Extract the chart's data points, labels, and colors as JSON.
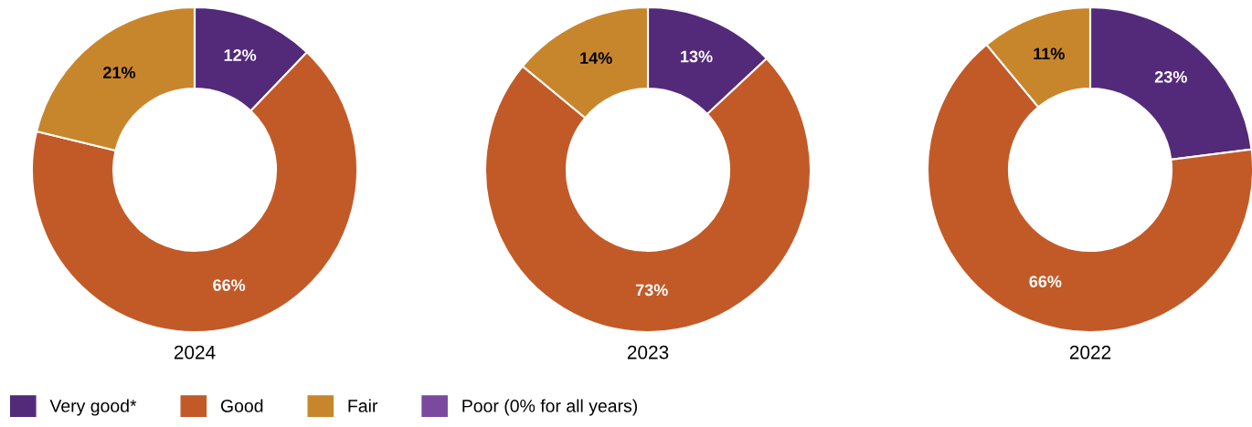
{
  "chart_data": [
    {
      "type": "donut",
      "title": "2024",
      "categories": [
        "Very good*",
        "Good",
        "Fair",
        "Poor (0% for all years)"
      ],
      "values": [
        12,
        66,
        21,
        0
      ],
      "colors": [
        "#532a7a",
        "#c25a28",
        "#c8862c",
        "#7b4a9e"
      ],
      "value_labels": [
        "12%",
        "66%",
        "21%",
        null
      ],
      "legend": "bottom"
    },
    {
      "type": "donut",
      "title": "2023",
      "categories": [
        null,
        null,
        null,
        null
      ],
      "values": [
        13,
        73,
        14,
        0
      ],
      "colors": [
        "#532a7a",
        "#c25a28",
        "#c8862c",
        "#7b4a9e"
      ],
      "value_labels": [
        "13%",
        "73%",
        "14%",
        null
      ]
    },
    {
      "type": "donut",
      "title": "2022",
      "categories": [
        null,
        null,
        null,
        null
      ],
      "values": [
        23,
        66,
        11,
        0
      ],
      "colors": [
        "#532a7a",
        "#c25a28",
        "#c8862c",
        "#7b4a9e"
      ],
      "value_labels": [
        "23%",
        "66%",
        "11%",
        null
      ]
    }
  ]
}
